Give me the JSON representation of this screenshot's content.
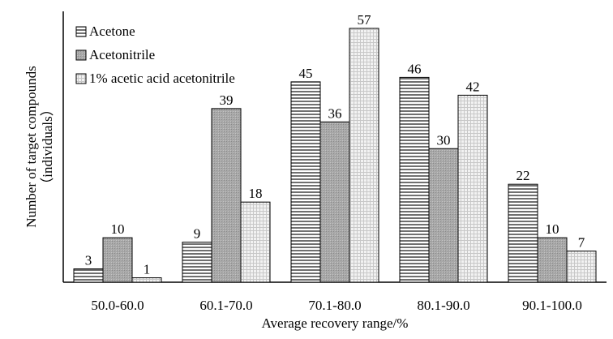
{
  "chart_data": {
    "type": "bar",
    "title": "",
    "xlabel": "Average recovery range/%",
    "ylabel": "Number of target compounds",
    "ylabel_line2": "（individuals）",
    "categories": [
      "50.0-60.0",
      "60.1-70.0",
      "70.1-80.0",
      "80.1-90.0",
      "90.1-100.0"
    ],
    "series": [
      {
        "name": "Acetone",
        "values": [
          3,
          9,
          45,
          46,
          22
        ],
        "pattern": "horizontal-lines"
      },
      {
        "name": "Acetonitrile",
        "values": [
          10,
          39,
          36,
          30,
          10
        ],
        "pattern": "dense-gray"
      },
      {
        "name": "1% acetic acid acetonitrile",
        "values": [
          1,
          18,
          57,
          42,
          7
        ],
        "pattern": "light-grid"
      }
    ],
    "ylim": [
      0,
      57
    ],
    "grid": false,
    "legend": "top-left"
  },
  "colors": {
    "bar_stroke": "#000000",
    "acetone_line": "#333333",
    "acetonitrile_fill": "#a8a8a8",
    "acetic_fill": "#eeeeee"
  }
}
